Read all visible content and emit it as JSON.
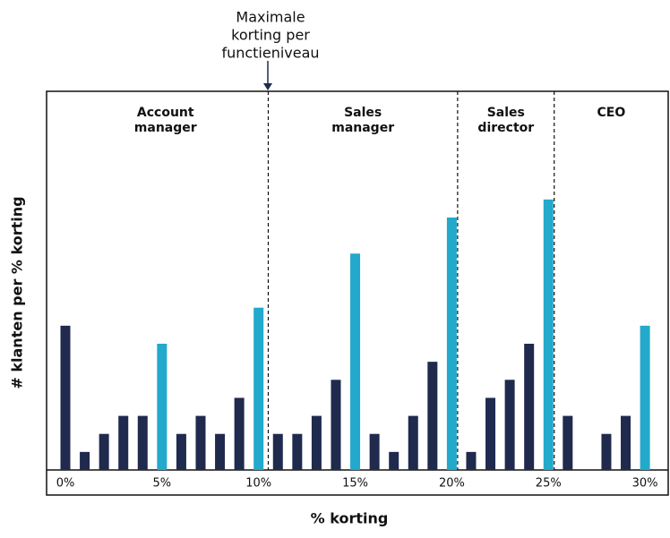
{
  "chart_data": {
    "type": "bar",
    "x_label": "% korting",
    "y_label": "# klanten per % korting",
    "annotation": [
      "Maximale",
      "korting per",
      "functieniveau"
    ],
    "categories": [
      "0%",
      null,
      null,
      null,
      null,
      "5%",
      null,
      null,
      null,
      null,
      "10%",
      null,
      null,
      null,
      null,
      "15%",
      null,
      null,
      null,
      null,
      "20%",
      null,
      null,
      null,
      null,
      "25%",
      null,
      null,
      null,
      null,
      "30%"
    ],
    "values": [
      8,
      1,
      2,
      3,
      3,
      7,
      2,
      3,
      2,
      4,
      9,
      2,
      2,
      3,
      5,
      12,
      2,
      1,
      3,
      6,
      14,
      1,
      4,
      5,
      7,
      15,
      3,
      0,
      2,
      3,
      8
    ],
    "colors": [
      "#1f2a4e",
      "#1f2a4e",
      "#1f2a4e",
      "#1f2a4e",
      "#1f2a4e",
      "#22a9cc",
      "#1f2a4e",
      "#1f2a4e",
      "#1f2a4e",
      "#1f2a4e",
      "#22a9cc",
      "#1f2a4e",
      "#1f2a4e",
      "#1f2a4e",
      "#1f2a4e",
      "#22a9cc",
      "#1f2a4e",
      "#1f2a4e",
      "#1f2a4e",
      "#1f2a4e",
      "#22a9cc",
      "#1f2a4e",
      "#1f2a4e",
      "#1f2a4e",
      "#1f2a4e",
      "#22a9cc",
      "#1f2a4e",
      "#1f2a4e",
      "#1f2a4e",
      "#1f2a4e",
      "#22a9cc"
    ],
    "ylim": [
      0,
      21
    ],
    "dividers": [
      10.5,
      20.3,
      25.3
    ],
    "regions": [
      [
        "Account",
        "manager"
      ],
      [
        "Sales",
        "manager"
      ],
      [
        "Sales",
        "director"
      ],
      [
        "CEO"
      ]
    ]
  }
}
